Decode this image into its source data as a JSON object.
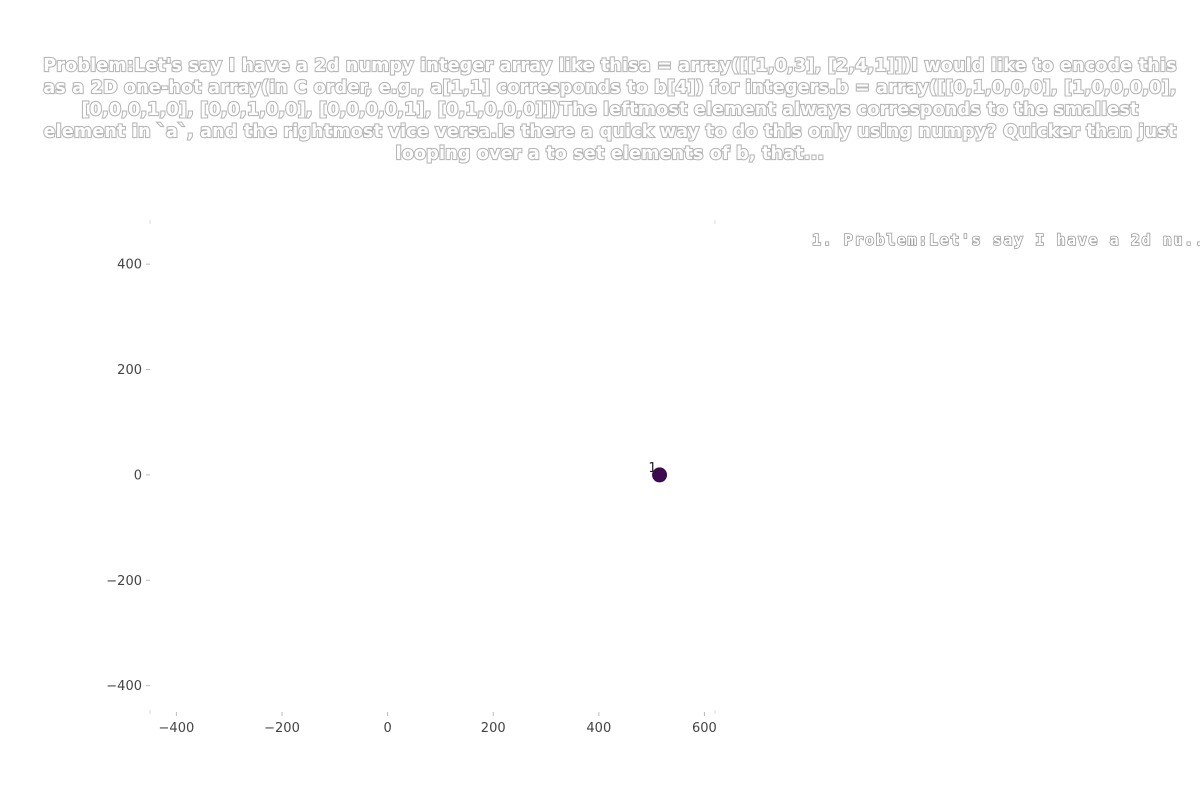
{
  "chart_data": {
    "type": "scatter",
    "title": "Problem:Let's say I have a 2d numpy integer array like thisa = array([[1,0,3], [2,4,1]])I would like to encode this as a 2D one-hot array(in C order, e.g., a[1,1] corresponds to b[4]) for integers.b = array([[0,1,0,0,0], [1,0,0,0,0], [0,0,0,1,0], [0,0,1,0,0], [0,0,0,0,1], [0,1,0,0,0]])The leftmost element always corresponds to the smallest element in `a`, and the rightmost vice versa.Is there a quick way to do this only using numpy? Quicker than just looping over a to set elements of b, that...",
    "legend": [
      "1. Problem:Let's say I have a 2d nu..."
    ],
    "legend_position": "top-right",
    "xlim": [
      -450,
      620
    ],
    "ylim": [
      -450,
      480
    ],
    "x_ticks": [
      -400,
      -200,
      0,
      200,
      400,
      600
    ],
    "y_ticks": [
      -400,
      -200,
      0,
      200,
      400
    ],
    "x_tick_labels": [
      "−400",
      "−200",
      "0",
      "200",
      "400",
      "600"
    ],
    "y_tick_labels": [
      "−400",
      "−200",
      "0",
      "200",
      "400"
    ],
    "grid": false,
    "points": [
      {
        "x": 515,
        "y": 0,
        "label": "1",
        "color": "#3d0a4f"
      }
    ]
  }
}
